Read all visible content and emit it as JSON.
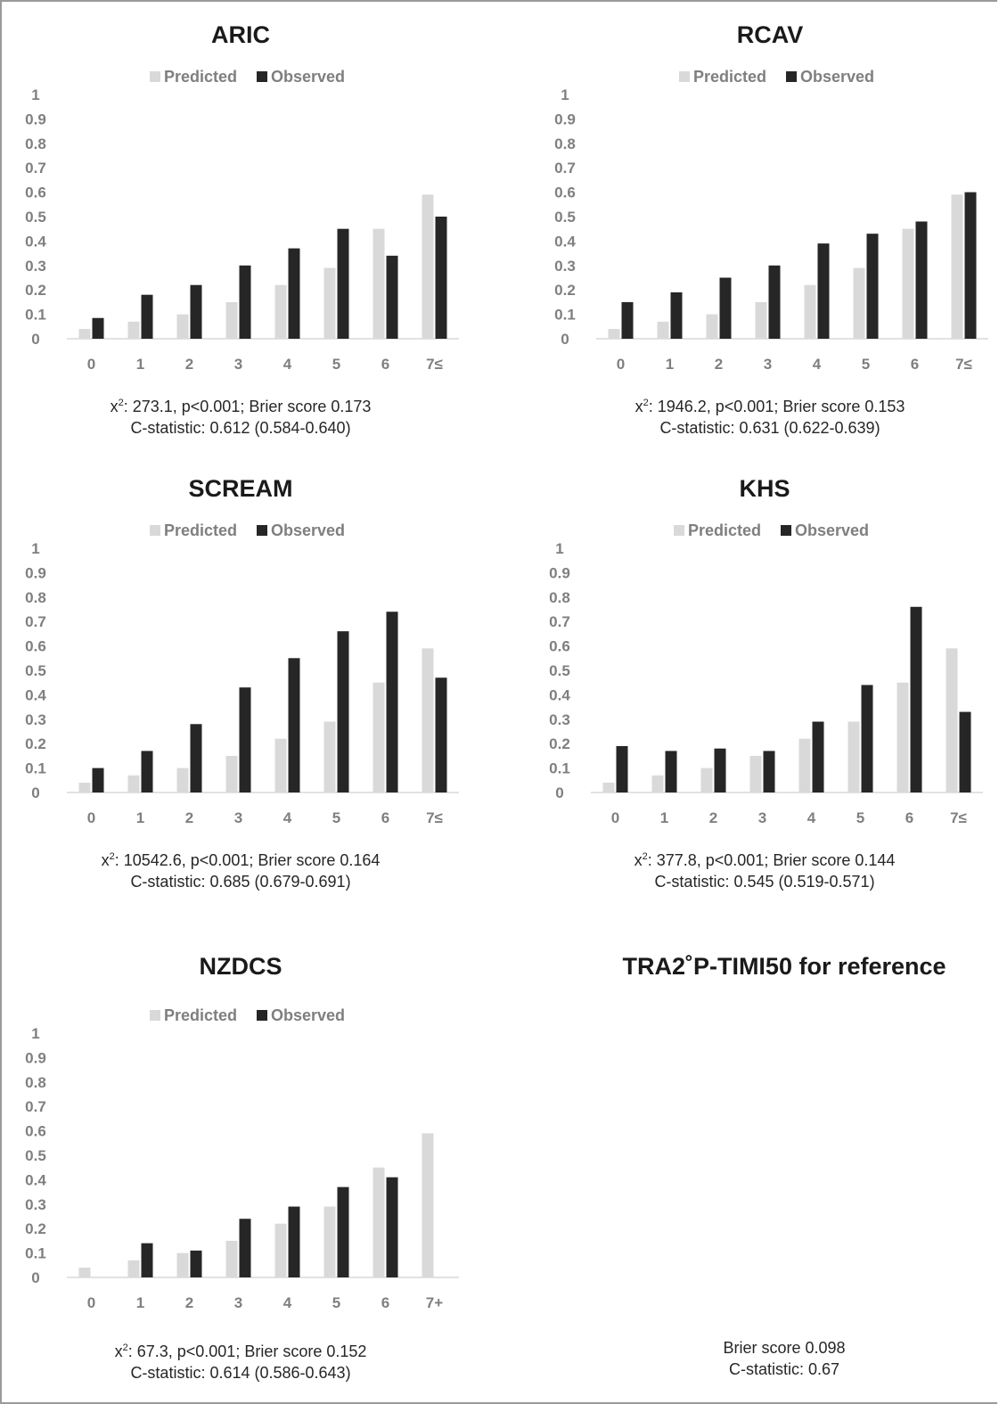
{
  "chart_data": [
    {
      "type": "bar",
      "title": "ARIC",
      "categories": [
        "0",
        "1",
        "2",
        "3",
        "4",
        "5",
        "6",
        "7≤"
      ],
      "series": [
        {
          "name": "Predicted",
          "values": [
            0.04,
            0.07,
            0.1,
            0.15,
            0.22,
            0.29,
            0.45,
            0.59
          ]
        },
        {
          "name": "Observed",
          "values": [
            0.085,
            0.18,
            0.22,
            0.3,
            0.37,
            0.45,
            0.34,
            0.5
          ]
        }
      ],
      "ylim": [
        0,
        1
      ],
      "yticks": [
        "0",
        "0.1",
        "0.2",
        "0.3",
        "0.4",
        "0.5",
        "0.6",
        "0.7",
        "0.8",
        "0.9",
        "1"
      ],
      "legend": "top",
      "grid": false,
      "caption": {
        "chi_symbol": "x",
        "chi_sup": "2",
        "line1": ": 273.1, p<0.001; Brier score 0.173",
        "line2": "C-statistic: 0.612 (0.584-0.640)"
      }
    },
    {
      "type": "bar",
      "title": "RCAV",
      "categories": [
        "0",
        "1",
        "2",
        "3",
        "4",
        "5",
        "6",
        "7≤"
      ],
      "series": [
        {
          "name": "Predicted",
          "values": [
            0.04,
            0.07,
            0.1,
            0.15,
            0.22,
            0.29,
            0.45,
            0.59
          ]
        },
        {
          "name": "Observed",
          "values": [
            0.15,
            0.19,
            0.25,
            0.3,
            0.39,
            0.43,
            0.48,
            0.6
          ]
        }
      ],
      "ylim": [
        0,
        1
      ],
      "yticks": [
        "0",
        "0.1",
        "0.2",
        "0.3",
        "0.4",
        "0.5",
        "0.6",
        "0.7",
        "0.8",
        "0.9",
        "1"
      ],
      "legend": "top",
      "grid": false,
      "caption": {
        "chi_symbol": "x",
        "chi_sup": "2",
        "line1": ": 1946.2, p<0.001; Brier score 0.153",
        "line2": "C-statistic: 0.631 (0.622-0.639)"
      }
    },
    {
      "type": "bar",
      "title": "SCREAM",
      "categories": [
        "0",
        "1",
        "2",
        "3",
        "4",
        "5",
        "6",
        "7≤"
      ],
      "series": [
        {
          "name": "Predicted",
          "values": [
            0.04,
            0.07,
            0.1,
            0.15,
            0.22,
            0.29,
            0.45,
            0.59
          ]
        },
        {
          "name": "Observed",
          "values": [
            0.1,
            0.17,
            0.28,
            0.43,
            0.55,
            0.66,
            0.74,
            0.47
          ]
        }
      ],
      "ylim": [
        0,
        1
      ],
      "yticks": [
        "0",
        "0.1",
        "0.2",
        "0.3",
        "0.4",
        "0.5",
        "0.6",
        "0.7",
        "0.8",
        "0.9",
        "1"
      ],
      "legend": "top",
      "grid": false,
      "caption": {
        "chi_symbol": "x",
        "chi_sup": "2",
        "line1": ": 10542.6, p<0.001; Brier score 0.164",
        "line2": "C-statistic: 0.685 (0.679-0.691)"
      }
    },
    {
      "type": "bar",
      "title": "KHS",
      "categories": [
        "0",
        "1",
        "2",
        "3",
        "4",
        "5",
        "6",
        "7≤"
      ],
      "series": [
        {
          "name": "Predicted",
          "values": [
            0.04,
            0.07,
            0.1,
            0.15,
            0.22,
            0.29,
            0.45,
            0.59
          ]
        },
        {
          "name": "Observed",
          "values": [
            0.19,
            0.17,
            0.18,
            0.17,
            0.29,
            0.44,
            0.76,
            0.33
          ]
        }
      ],
      "ylim": [
        0,
        1
      ],
      "yticks": [
        "0",
        "0.1",
        "0.2",
        "0.3",
        "0.4",
        "0.5",
        "0.6",
        "0.7",
        "0.8",
        "0.9",
        "1"
      ],
      "legend": "top",
      "grid": false,
      "caption": {
        "chi_symbol": "x",
        "chi_sup": "2",
        "line1": ": 377.8, p<0.001; Brier score 0.144",
        "line2": "C-statistic: 0.545 (0.519-0.571)"
      }
    },
    {
      "type": "bar",
      "title": "NZDCS",
      "categories": [
        "0",
        "1",
        "2",
        "3",
        "4",
        "5",
        "6",
        "7+"
      ],
      "series": [
        {
          "name": "Predicted",
          "values": [
            0.04,
            0.07,
            0.1,
            0.15,
            0.22,
            0.29,
            0.45,
            0.59
          ]
        },
        {
          "name": "Observed",
          "values": [
            0,
            0.14,
            0.11,
            0.24,
            0.29,
            0.37,
            0.41,
            0
          ]
        }
      ],
      "ylim": [
        0,
        1
      ],
      "yticks": [
        "0",
        "0.1",
        "0.2",
        "0.3",
        "0.4",
        "0.5",
        "0.6",
        "0.7",
        "0.8",
        "0.9",
        "1"
      ],
      "legend": "top",
      "grid": false,
      "caption": {
        "chi_symbol": "x",
        "chi_sup": "2",
        "line1": ": 67.3, p<0.001; Brier score 0.152",
        "line2": "C-statistic: 0.614 (0.586-0.643)"
      }
    }
  ],
  "reference": {
    "title": "TRA2˚P-TIMI50 for reference",
    "line1": "Brier score 0.098",
    "line2": "C-statistic: 0.67"
  },
  "colors": {
    "predicted": "#d9d9d9",
    "observed": "#262626",
    "axis_text": "#7f7f7f",
    "axis_line": "#d9d9d9"
  }
}
